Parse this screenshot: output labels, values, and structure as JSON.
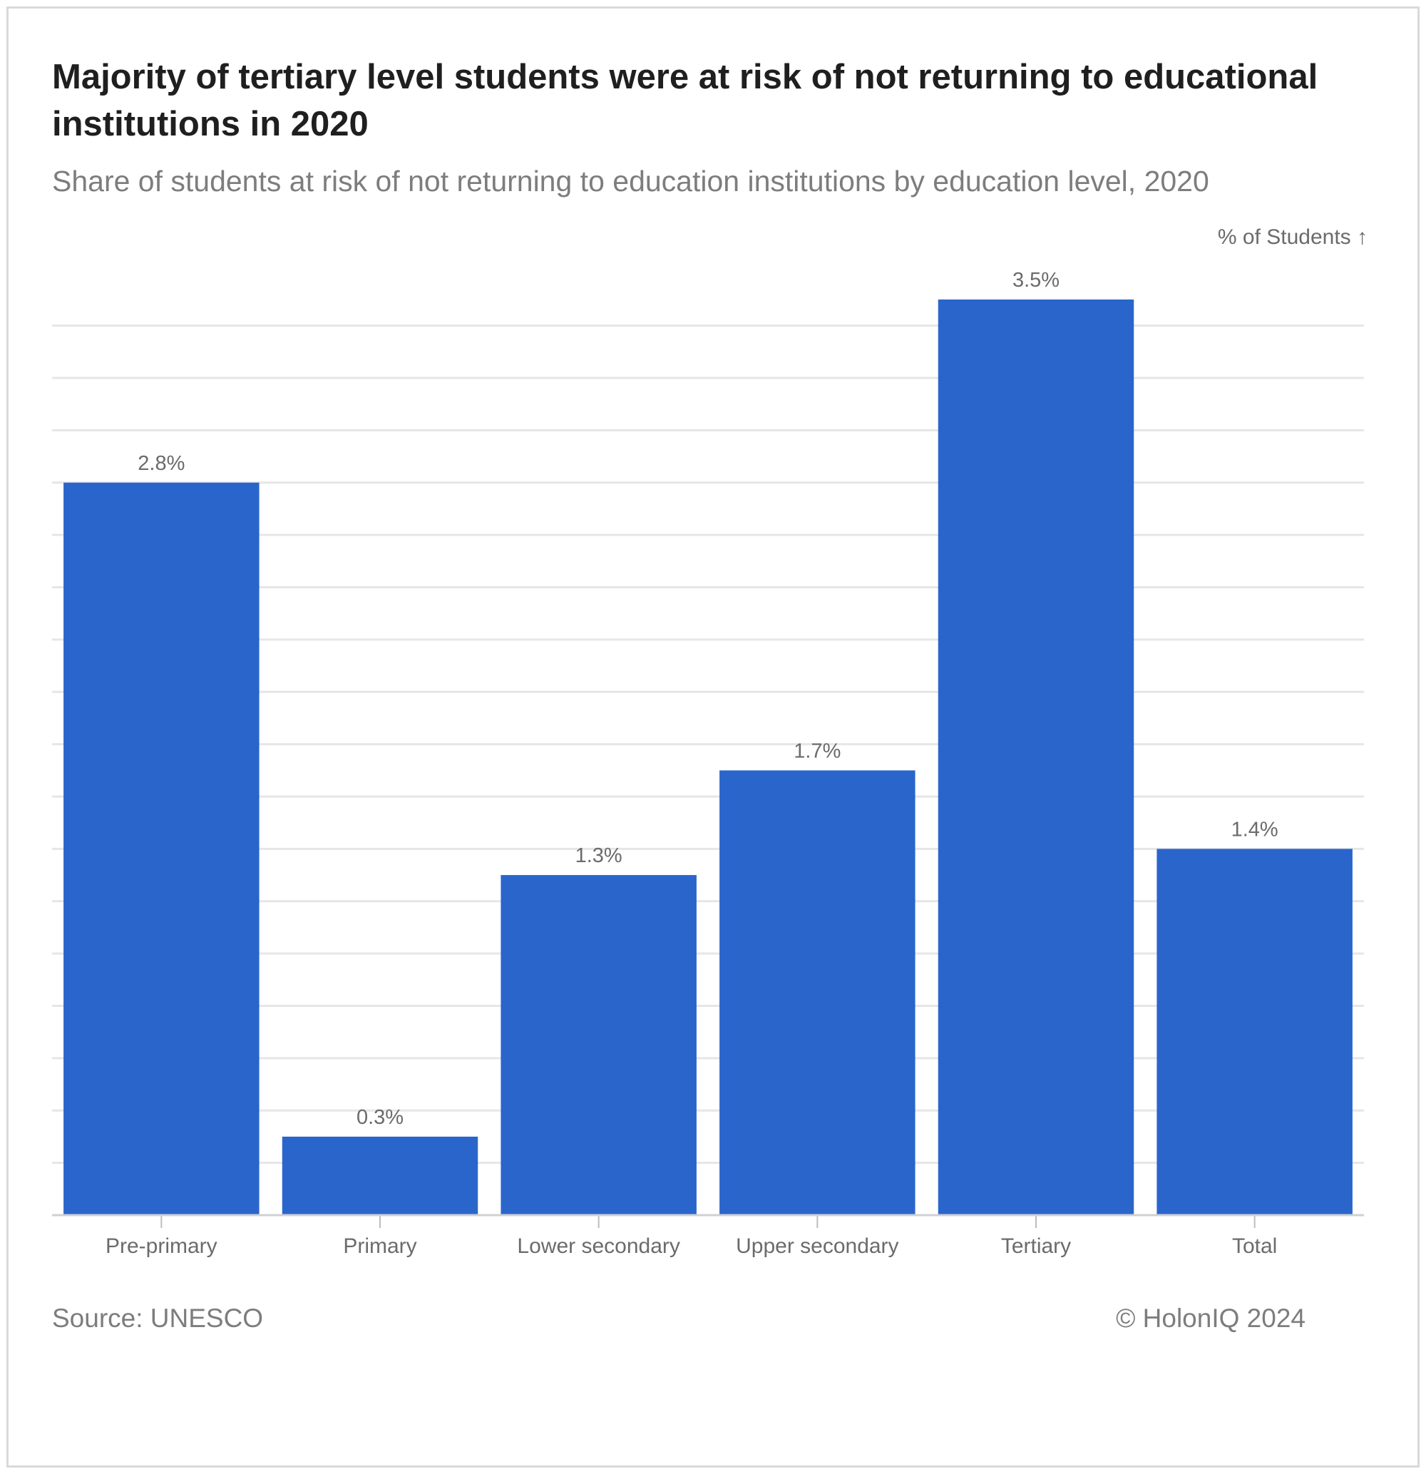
{
  "header": {
    "title": "Majority of tertiary level students were at risk of not returning to educational institutions in 2020",
    "subtitle": "Share of students at risk of not returning to education institutions by education level, 2020"
  },
  "footer": {
    "source": "Source: UNESCO",
    "copyright": "© HolonIQ 2024"
  },
  "colors": {
    "bar": "#2a65cc",
    "grid": "#e6e6e6",
    "label": "#6b6b6b",
    "axis": "#d0d0d0"
  },
  "chart_data": {
    "type": "bar",
    "title": "Majority of tertiary level students were at risk of not returning to educational institutions in 2020",
    "subtitle": "Share of students at risk of not returning to education institutions by education level, 2020",
    "ylabel": "% of Students ↑",
    "xlabel": "",
    "categories": [
      "Pre-primary",
      "Primary",
      "Lower secondary",
      "Upper secondary",
      "Tertiary",
      "Total"
    ],
    "values": [
      2.8,
      0.3,
      1.3,
      1.7,
      3.5,
      1.4
    ],
    "data_labels": [
      "2.8%",
      "0.3%",
      "1.3%",
      "1.7%",
      "3.5%",
      "1.4%"
    ],
    "ylim": [
      0,
      3.5
    ],
    "grid": true,
    "legend": "none"
  }
}
